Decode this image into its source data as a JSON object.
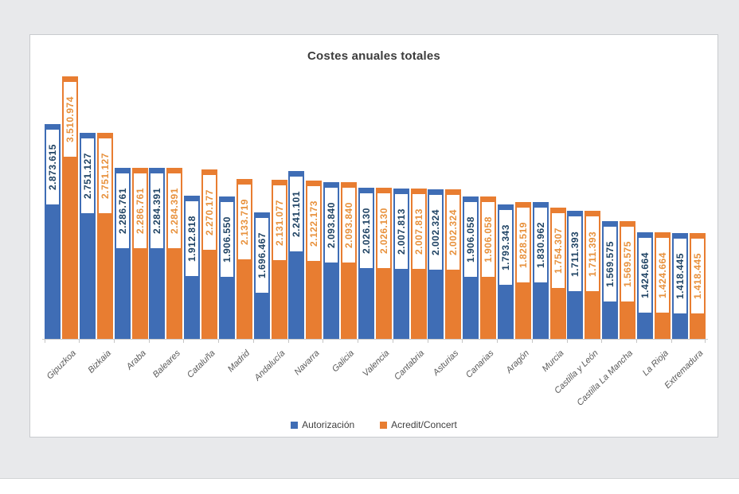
{
  "window": {
    "background_color": "#e8e9eb",
    "footer_background_color": "#ffffff",
    "card_background_color": "#ffffff",
    "card_border_color": "#c9cbce"
  },
  "chart": {
    "title": "Costes anuales totales",
    "title_color": "#3c3c3c",
    "axis_color": "#cccccc",
    "category_label_color": "#595959"
  },
  "chart_data": {
    "type": "bar",
    "title": "Costes anuales totales",
    "categories": [
      "Gipuzkoa",
      "Bizkaia",
      "Araba",
      "Baleares",
      "Cataluña",
      "Madrid",
      "Andalucía",
      "Navarra",
      "Galicia",
      "Valencia",
      "Cantabria",
      "Asturias",
      "Canarias",
      "Aragón",
      "Murcia",
      "Castilla y León",
      "Castilla La Mancha",
      "La Rioja",
      "Extremadura"
    ],
    "series": [
      {
        "name": "Autorización",
        "color": "#3f6db5",
        "label_color": "#1f4364",
        "values": [
          2873615,
          2751127,
          2286761,
          2284391,
          1912818,
          1906550,
          1696467,
          2241101,
          2093840,
          2026130,
          2007813,
          2002324,
          1906058,
          1793343,
          1830962,
          1711393,
          1569575,
          1424664,
          1418445
        ]
      },
      {
        "name": "Acredit/Concert",
        "color": "#e87d31",
        "label_color": "#e8913c",
        "values": [
          3510974,
          2751127,
          2286761,
          2284391,
          2270177,
          2133719,
          2131077,
          2122173,
          2093840,
          2026130,
          2007813,
          2002324,
          1906058,
          1828519,
          1754307,
          1711393,
          1569575,
          1424664,
          1418445
        ]
      }
    ],
    "value_label_format": "thousands-dot",
    "data_labels": {
      "rotation": 90,
      "boxed": true
    },
    "xlabel": "",
    "ylabel": "",
    "ylim": [
      0,
      3510974
    ],
    "y_axis_visible": false,
    "grid": false,
    "legend_position": "bottom"
  }
}
